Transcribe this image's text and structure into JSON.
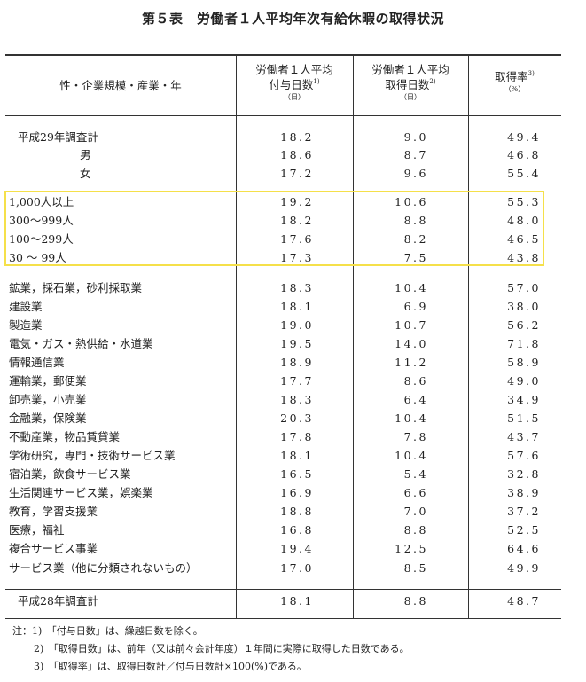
{
  "title": "第５表　労働者１人平均年次有給休暇の取得状況",
  "header": {
    "col0": "性・企業規模・産業・年",
    "col1_line1": "労働者１人平均",
    "col1_line2": "付与日数",
    "col1_sup": "1)",
    "col1_unit": "（日）",
    "col2_line1": "労働者１人平均",
    "col2_line2": "取得日数",
    "col2_sup": "2)",
    "col2_unit": "（日）",
    "col3_line1": "取得率",
    "col3_sup": "3)",
    "col3_unit": "（%）"
  },
  "rows": [
    {
      "label": "平成29年調査計",
      "granted": "18.2",
      "taken": "9.0",
      "rate": "49.4"
    },
    {
      "label": "男",
      "granted": "18.6",
      "taken": "8.7",
      "rate": "46.8"
    },
    {
      "label": "女",
      "granted": "17.2",
      "taken": "9.6",
      "rate": "55.4"
    },
    {
      "label": "1,000人以上",
      "granted": "19.2",
      "taken": "10.6",
      "rate": "55.3"
    },
    {
      "label": "300～999人",
      "granted": "18.2",
      "taken": "8.8",
      "rate": "48.0"
    },
    {
      "label": "100～299人",
      "granted": "17.6",
      "taken": "8.2",
      "rate": "46.5"
    },
    {
      "label": "30 ～ 99人",
      "granted": "17.3",
      "taken": "7.5",
      "rate": "43.8"
    },
    {
      "label": "鉱業，採石業，砂利採取業",
      "granted": "18.3",
      "taken": "10.4",
      "rate": "57.0"
    },
    {
      "label": "建設業",
      "granted": "18.1",
      "taken": "6.9",
      "rate": "38.0"
    },
    {
      "label": "製造業",
      "granted": "19.0",
      "taken": "10.7",
      "rate": "56.2"
    },
    {
      "label": "電気・ガス・熱供給・水道業",
      "granted": "19.5",
      "taken": "14.0",
      "rate": "71.8"
    },
    {
      "label": "情報通信業",
      "granted": "18.9",
      "taken": "11.2",
      "rate": "58.9"
    },
    {
      "label": "運輸業，郵便業",
      "granted": "17.7",
      "taken": "8.6",
      "rate": "49.0"
    },
    {
      "label": "卸売業，小売業",
      "granted": "18.3",
      "taken": "6.4",
      "rate": "34.9"
    },
    {
      "label": "金融業，保険業",
      "granted": "20.3",
      "taken": "10.4",
      "rate": "51.5"
    },
    {
      "label": "不動産業，物品賃貸業",
      "granted": "17.8",
      "taken": "7.8",
      "rate": "43.7"
    },
    {
      "label": "学術研究，専門・技術サービス業",
      "granted": "18.1",
      "taken": "10.4",
      "rate": "57.6"
    },
    {
      "label": "宿泊業，飲食サービス業",
      "granted": "16.5",
      "taken": "5.4",
      "rate": "32.8"
    },
    {
      "label": "生活関連サービス業，娯楽業",
      "granted": "16.9",
      "taken": "6.6",
      "rate": "38.9"
    },
    {
      "label": "教育，学習支援業",
      "granted": "18.8",
      "taken": "7.0",
      "rate": "37.2"
    },
    {
      "label": "医療，福祉",
      "granted": "16.8",
      "taken": "8.8",
      "rate": "52.5"
    },
    {
      "label": "複合サービス事業",
      "granted": "19.4",
      "taken": "12.5",
      "rate": "64.6"
    },
    {
      "label": "サービス業（他に分類されないもの）",
      "granted": "17.0",
      "taken": "8.5",
      "rate": "49.9"
    },
    {
      "label": "平成28年調査計",
      "granted": "18.1",
      "taken": "8.8",
      "rate": "48.7"
    }
  ],
  "notes": [
    "注：1)　「付与日数」は、繰越日数を除く。",
    "2)　「取得日数」は、前年（又は前々会計年度）１年間に実際に取得した日数である。",
    "3)　「取得率」は、取得日数計／付与日数計×100(%)である。"
  ]
}
